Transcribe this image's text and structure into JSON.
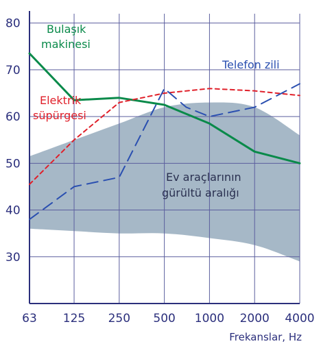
{
  "chart_data": {
    "type": "line",
    "x_tick_labels": [
      "63",
      "125",
      "250",
      "500",
      "1000",
      "2000",
      "4000"
    ],
    "x_scale": "log2",
    "xlabel": "Frekanslar, Hz",
    "ylabel": "",
    "ylim": [
      20,
      82
    ],
    "y_ticks": [
      30,
      40,
      50,
      60,
      70,
      80
    ],
    "grid": true,
    "colors": {
      "grid": "#5b5e9e",
      "axis": "#2b2f7c",
      "band": "#97acbd",
      "dishwasher": "#0a8a4a",
      "vacuum": "#e0202a",
      "phone": "#2a4fb0",
      "band_text": "#2a3050"
    },
    "series": [
      {
        "name": "Bulaşık makinesi",
        "name_line1": "Bulaşık",
        "name_line2": "makinesi",
        "style": "solid",
        "x": [
          63,
          125,
          250,
          500,
          1000,
          2000,
          4000
        ],
        "y": [
          73.5,
          63.5,
          64,
          62.5,
          58.5,
          52.5,
          50
        ]
      },
      {
        "name": "Elektrik süpürgesi",
        "name_line1": "Elektrik",
        "name_line2": "süpürgesi",
        "style": "short-dash",
        "x": [
          63,
          125,
          250,
          500,
          1000,
          2000,
          4000
        ],
        "y": [
          45.5,
          55,
          63,
          65,
          66,
          65.5,
          64.5
        ]
      },
      {
        "name": "Telefon zili",
        "style": "long-dash",
        "x": [
          63,
          125,
          250,
          500,
          700,
          1000,
          2000,
          4000
        ],
        "y": [
          38,
          45,
          47,
          66,
          62,
          60,
          62,
          67
        ]
      }
    ],
    "band": {
      "name": "Ev araçlarının gürültü aralığı",
      "name_line1": "Ev araçlarının",
      "name_line2": "gürültü aralığı",
      "x": [
        63,
        125,
        250,
        500,
        1000,
        2000,
        4000
      ],
      "upper": [
        51.5,
        55,
        58.5,
        62,
        63,
        62,
        56
      ],
      "lower": [
        36,
        35.5,
        35,
        35,
        34,
        32.5,
        29
      ]
    }
  }
}
